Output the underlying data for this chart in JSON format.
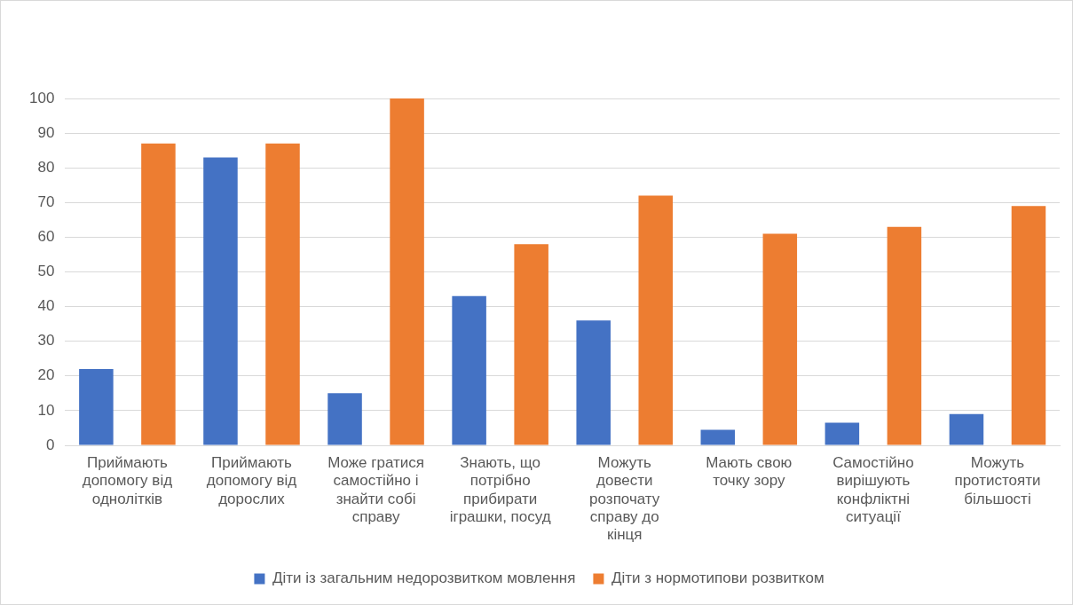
{
  "chart_data": {
    "type": "bar",
    "categories": [
      "Приймають допомогу від однолітків",
      "Приймають допомогу від дорослих",
      "Може гратися самостійно і знайти собі справу",
      "Знають, що потрібно прибирати іграшки, посуд",
      "Можуть довести розпочату справу до кінця",
      "Мають свою точку зору",
      "Самостійно вирішують конфліктні ситуації",
      "Можуть протистояти більшості"
    ],
    "series": [
      {
        "name": "Діти із загальним недорозвитком мовлення",
        "color": "#4472c4",
        "values": [
          22,
          83,
          15,
          43,
          36,
          4.5,
          6.5,
          9
        ]
      },
      {
        "name": "Діти з нормотипови розвитком",
        "color": "#ed7d31",
        "values": [
          87,
          87,
          100,
          58,
          72,
          61,
          63,
          69
        ]
      }
    ],
    "ylim": [
      0,
      100
    ],
    "yticks": [
      0,
      10,
      20,
      30,
      40,
      50,
      60,
      70,
      80,
      90,
      100
    ],
    "grid": "y",
    "legend": "bottom"
  }
}
